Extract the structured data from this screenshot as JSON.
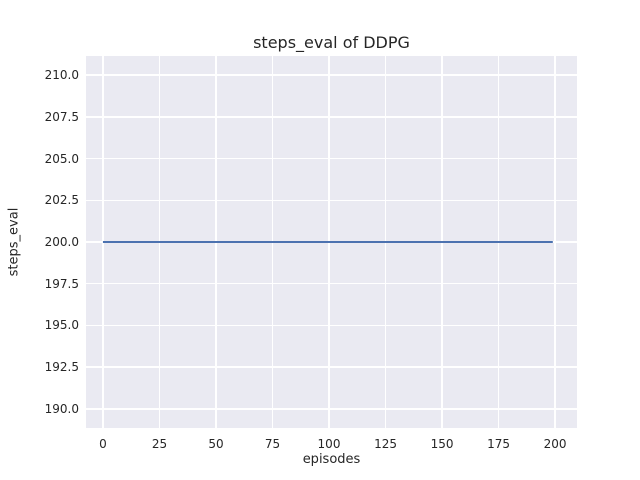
{
  "chart_data": {
    "type": "line",
    "title": "steps_eval of DDPG",
    "xlabel": "episodes",
    "ylabel": "steps_eval",
    "x_ticks": [
      0,
      25,
      50,
      75,
      100,
      125,
      150,
      175,
      200
    ],
    "x_tick_labels": [
      "0",
      "25",
      "50",
      "75",
      "100",
      "125",
      "150",
      "175",
      "200"
    ],
    "y_ticks": [
      190.0,
      192.5,
      195.0,
      197.5,
      200.0,
      202.5,
      205.0,
      207.5,
      210.0
    ],
    "y_tick_labels": [
      "190.0",
      "192.5",
      "195.0",
      "197.5",
      "200.0",
      "202.5",
      "205.0",
      "207.5",
      "210.0"
    ],
    "xlim": [
      -7.5,
      209.7
    ],
    "ylim": [
      188.85,
      211.15
    ],
    "grid": true,
    "legend_visible": false,
    "style": {
      "figure_bg": "#FFFFFF",
      "plot_bg": "#EAEAF2",
      "grid_color": "#FFFFFF",
      "text_color": "#262626",
      "line_width": 2
    },
    "series": [
      {
        "name": "steps_eval",
        "color": "#4C72B0",
        "x": [
          0,
          199
        ],
        "y": [
          200.0,
          200.0
        ]
      }
    ]
  }
}
